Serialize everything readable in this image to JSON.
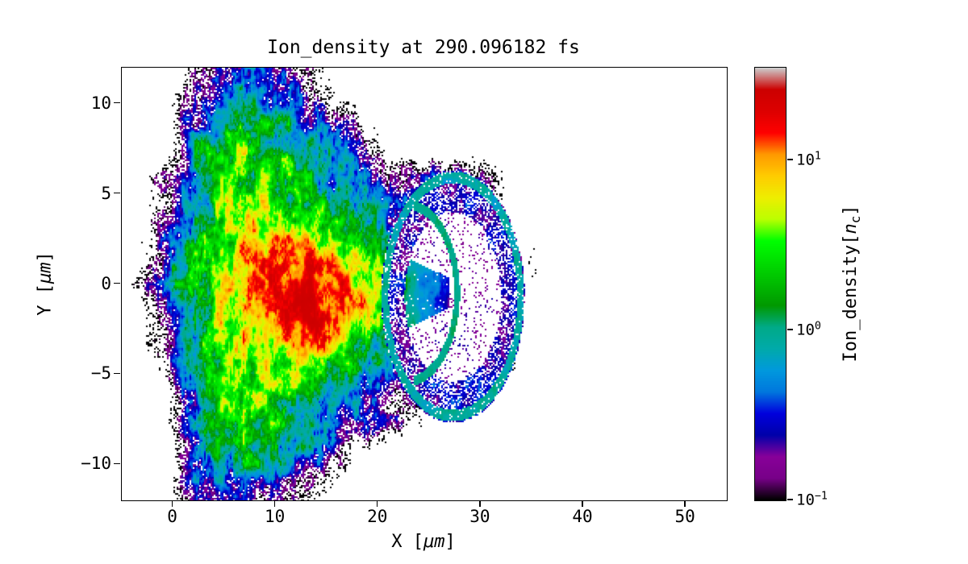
{
  "figure": {
    "background": "#ffffff"
  },
  "chart_data": {
    "type": "heatmap",
    "title": "Ion_density at 290.096182 fs",
    "xlabel": "X [μm]",
    "ylabel": "Y [μm]",
    "xlabel_parts": {
      "pre": "X [",
      "math": "μm",
      "post": "]"
    },
    "ylabel_parts": {
      "pre": "Y [",
      "math": "μm",
      "post": "]"
    },
    "xlim": [
      -5,
      54
    ],
    "ylim": [
      -12,
      12
    ],
    "xticks": [
      {
        "v": 0,
        "label": "0"
      },
      {
        "v": 10,
        "label": "10"
      },
      {
        "v": 20,
        "label": "20"
      },
      {
        "v": 30,
        "label": "30"
      },
      {
        "v": 40,
        "label": "40"
      },
      {
        "v": 50,
        "label": "50"
      }
    ],
    "yticks": [
      {
        "v": 10,
        "label": "10"
      },
      {
        "v": 5,
        "label": "5"
      },
      {
        "v": 0,
        "label": "0"
      },
      {
        "v": -5,
        "label": "−5"
      },
      {
        "v": -10,
        "label": "−10"
      }
    ],
    "colorbar": {
      "label": "Ion_density[n_c]",
      "label_parts": {
        "pre": "Ion_density[",
        "math": "n",
        "sub": "c",
        "post": "]"
      },
      "scale": "log",
      "vmin": 0.1,
      "vmax": 35,
      "ticks": [
        {
          "v": 10,
          "base": "10",
          "exp": "1"
        },
        {
          "v": 1,
          "base": "10",
          "exp": "0"
        },
        {
          "v": 0.1,
          "base": "10",
          "exp": "−1"
        }
      ],
      "colormap": {
        "name": "nipy_spectral",
        "anchors": [
          [
            0.0,
            [
              0.0,
              0.0,
              0.0
            ]
          ],
          [
            0.05,
            [
              0.4667,
              0.0,
              0.5333
            ]
          ],
          [
            0.1,
            [
              0.5333,
              0.0,
              0.6
            ]
          ],
          [
            0.15,
            [
              0.0,
              0.0,
              0.6667
            ]
          ],
          [
            0.2,
            [
              0.0,
              0.0,
              0.8667
            ]
          ],
          [
            0.25,
            [
              0.0,
              0.4667,
              0.8667
            ]
          ],
          [
            0.3,
            [
              0.0,
              0.6,
              0.8667
            ]
          ],
          [
            0.35,
            [
              0.0,
              0.6667,
              0.6667
            ]
          ],
          [
            0.4,
            [
              0.0,
              0.6667,
              0.5333
            ]
          ],
          [
            0.45,
            [
              0.0,
              0.6,
              0.0
            ]
          ],
          [
            0.5,
            [
              0.0,
              0.7333,
              0.0
            ]
          ],
          [
            0.55,
            [
              0.0,
              0.8667,
              0.0
            ]
          ],
          [
            0.6,
            [
              0.0,
              1.0,
              0.0
            ]
          ],
          [
            0.65,
            [
              0.7333,
              1.0,
              0.0
            ]
          ],
          [
            0.7,
            [
              0.9333,
              0.9333,
              0.0
            ]
          ],
          [
            0.75,
            [
              1.0,
              0.8,
              0.0
            ]
          ],
          [
            0.8,
            [
              1.0,
              0.6,
              0.0
            ]
          ],
          [
            0.85,
            [
              1.0,
              0.0,
              0.0
            ]
          ],
          [
            0.9,
            [
              0.8667,
              0.0,
              0.0
            ]
          ],
          [
            0.95,
            [
              0.8,
              0.0,
              0.0
            ]
          ],
          [
            1.0,
            [
              0.8,
              0.8,
              0.8
            ]
          ]
        ]
      }
    },
    "grid": {
      "comment": "coarse log10(ion density in n_c) field estimated from the image; null = empty/white",
      "x": [
        -4.5,
        -1.5,
        1.5,
        4.5,
        7.5,
        10.5,
        13.5,
        16.5,
        19.5,
        22.5,
        25.5,
        28.5,
        31.5,
        34.5,
        37.5,
        40.5,
        43.5,
        46.5,
        49.5,
        52.5
      ],
      "y": [
        12,
        10,
        8,
        6,
        4,
        2,
        0,
        -2,
        -4,
        -6,
        -8,
        -10,
        -12
      ],
      "log10_values": [
        [
          null,
          null,
          -1.2,
          -0.7,
          -0.5,
          -0.8,
          -1.2,
          null,
          null,
          null,
          null,
          null,
          null,
          null,
          null,
          null,
          null,
          null,
          null,
          null
        ],
        [
          null,
          null,
          -0.8,
          -0.2,
          0.1,
          -0.3,
          -0.7,
          -1.1,
          null,
          null,
          null,
          null,
          null,
          null,
          null,
          null,
          null,
          null,
          null,
          null
        ],
        [
          null,
          null,
          -0.6,
          0.2,
          0.4,
          0.2,
          -0.2,
          -0.6,
          -1.0,
          null,
          null,
          null,
          null,
          null,
          null,
          null,
          null,
          null,
          null,
          null
        ],
        [
          null,
          -1.2,
          -0.4,
          0.4,
          0.5,
          0.4,
          0.1,
          -0.2,
          -0.6,
          -0.7,
          -0.6,
          -0.8,
          -1.2,
          null,
          null,
          null,
          null,
          null,
          null,
          null
        ],
        [
          null,
          -1.0,
          -0.2,
          0.5,
          0.7,
          0.6,
          0.4,
          0.2,
          -0.2,
          -0.5,
          -0.5,
          -0.6,
          -0.9,
          null,
          null,
          null,
          null,
          null,
          null,
          null
        ],
        [
          null,
          -0.9,
          0.0,
          0.6,
          0.9,
          1.0,
          0.8,
          0.5,
          0.3,
          -0.2,
          -0.4,
          -0.5,
          -0.7,
          -1.35,
          null,
          null,
          null,
          null,
          null,
          null
        ],
        [
          -1.3,
          -0.8,
          0.2,
          0.7,
          1.0,
          1.3,
          1.4,
          1.2,
          0.7,
          0.3,
          -0.1,
          -0.5,
          -0.6,
          -1.35,
          null,
          null,
          null,
          null,
          null,
          null
        ],
        [
          null,
          -0.9,
          0.1,
          0.6,
          0.9,
          1.2,
          1.3,
          1.0,
          0.6,
          0.2,
          -0.3,
          -0.5,
          -0.6,
          null,
          null,
          null,
          null,
          null,
          null,
          null
        ],
        [
          null,
          -1.1,
          -0.1,
          0.5,
          0.7,
          0.8,
          0.6,
          0.4,
          0.0,
          -0.4,
          -0.5,
          -0.6,
          -0.9,
          null,
          null,
          null,
          null,
          null,
          null,
          null
        ],
        [
          null,
          null,
          -0.3,
          0.3,
          0.5,
          0.4,
          0.2,
          -0.1,
          -0.5,
          -0.8,
          -0.9,
          -1.0,
          null,
          null,
          null,
          null,
          null,
          null,
          null,
          null
        ],
        [
          null,
          null,
          -0.5,
          0.2,
          0.4,
          0.2,
          -0.1,
          -0.5,
          -0.9,
          -1.1,
          null,
          null,
          null,
          null,
          null,
          null,
          null,
          null,
          null,
          null
        ],
        [
          null,
          null,
          -0.7,
          -0.2,
          0.1,
          -0.3,
          -0.7,
          -1.1,
          null,
          null,
          null,
          null,
          null,
          null,
          null,
          null,
          null,
          null,
          null,
          null
        ],
        [
          null,
          null,
          -1.0,
          -0.7,
          -0.6,
          -0.8,
          -1.1,
          null,
          null,
          null,
          null,
          null,
          null,
          null,
          null,
          null,
          null,
          null,
          null,
          null
        ]
      ]
    },
    "features": {
      "bubble_ring": {
        "cx": 27.3,
        "cy": -0.7,
        "r": 6.6
      },
      "inner_arc": {
        "cx": 22.8,
        "cy": -0.5,
        "r": 4.9
      },
      "jet": {
        "x_start": 19.5,
        "x_end": 27.0,
        "y_center": -0.5
      },
      "core": {
        "x_range": [
          9,
          18
        ],
        "y_range": [
          -2,
          1.5
        ],
        "peak_nc": 25
      }
    }
  }
}
